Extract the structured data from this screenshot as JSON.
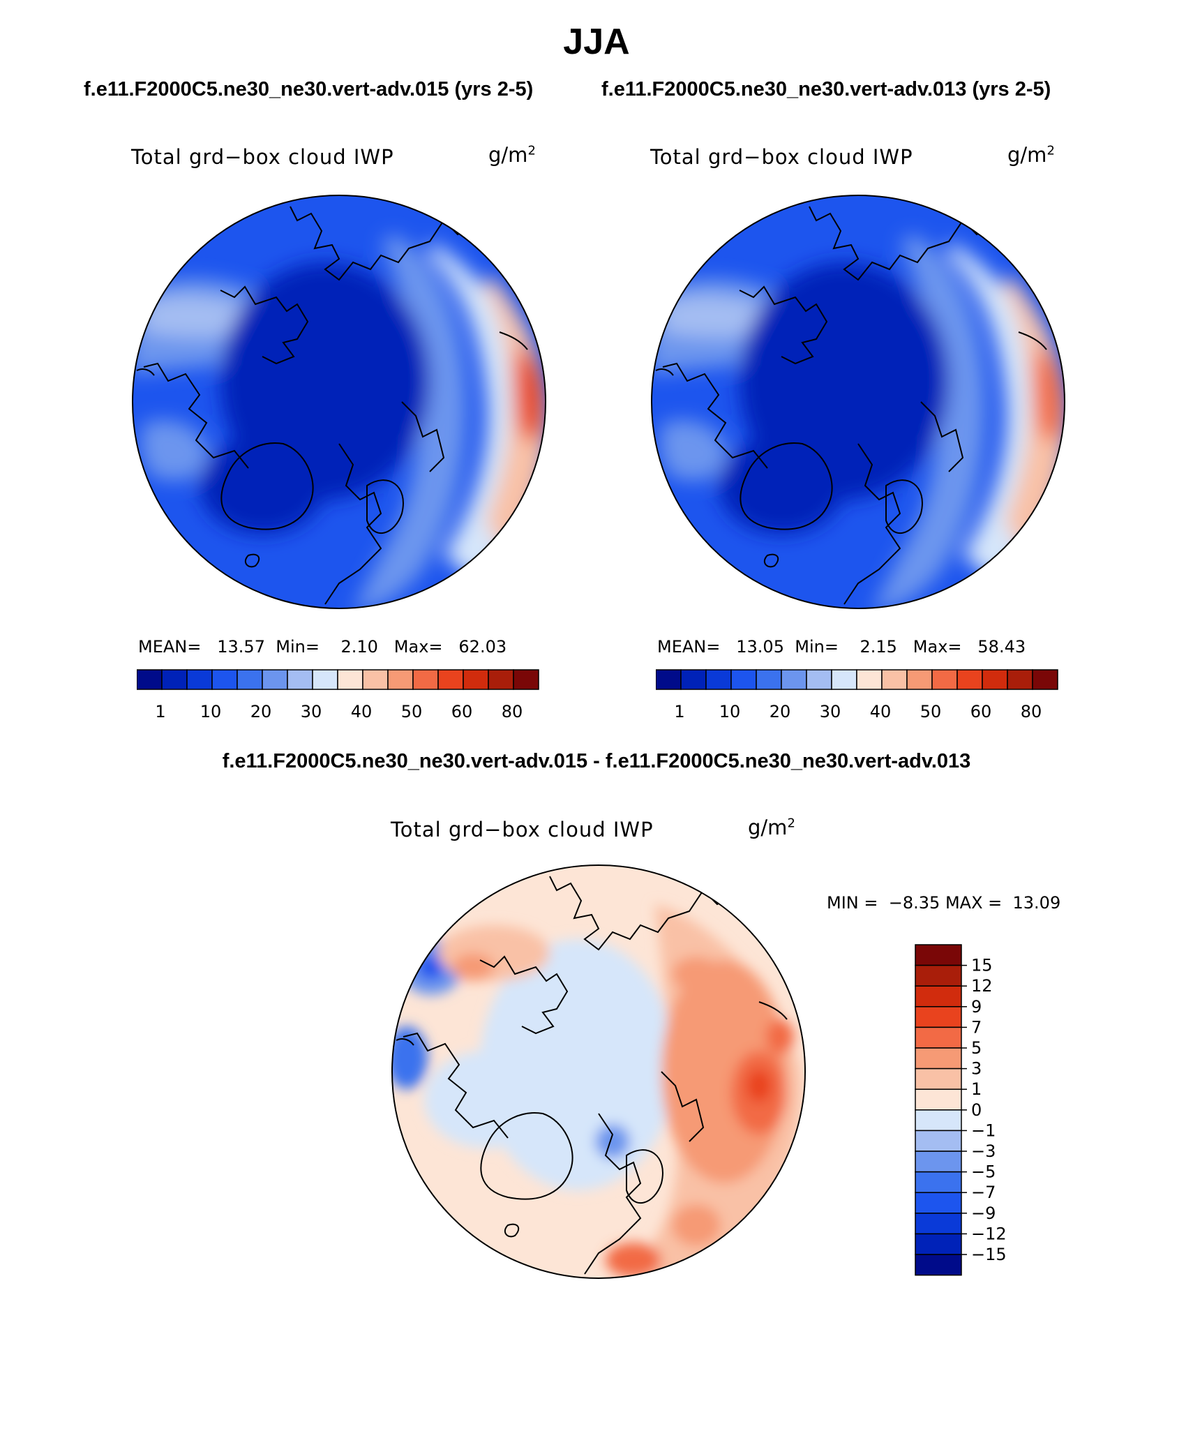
{
  "title": "JJA",
  "case_titles": {
    "left": "f.e11.F2000C5.ne30_ne30.vert-adv.015 (yrs 2-5)",
    "right": "f.e11.F2000C5.ne30_ne30.vert-adv.013 (yrs 2-5)"
  },
  "diff_title": "f.e11.F2000C5.ne30_ne30.vert-adv.015 - f.e11.F2000C5.ne30_ne30.vert-adv.013",
  "colors": {
    "abs_palette": [
      "#000b8a",
      "#0022b8",
      "#0a3ad8",
      "#1d55ee",
      "#3b72ee",
      "#6c95ee",
      "#a4bdf2",
      "#d6e6fa",
      "#fde5d6",
      "#f9c1a6",
      "#f69a75",
      "#f26a45",
      "#e9431e",
      "#d12c0d",
      "#a91e0a",
      "#7a0707"
    ],
    "diff_palette": [
      "#000b8a",
      "#0022b8",
      "#0a3ad8",
      "#1d55ee",
      "#3b72ee",
      "#6c95ee",
      "#a4bdf2",
      "#d6e6fa",
      "#fde5d6",
      "#f9c1a6",
      "#f69a75",
      "#f26a45",
      "#e9431e",
      "#d12c0d",
      "#a91e0a",
      "#7a0707"
    ],
    "coast": "#000000"
  },
  "chart_data": [
    {
      "type": "heatmap",
      "projection": "north-polar-stereographic",
      "case": "f.e11.F2000C5.ne30_ne30.vert-adv.015 (yrs 2-5)",
      "variable": "Total grd−box cloud IWP",
      "units_text": "g/m",
      "units_sup": "2",
      "stats": {
        "mean_label": "MEAN=",
        "mean": "13.57",
        "min_label": "Min=",
        "min": "2.10",
        "max_label": "Max=",
        "max": "62.03"
      },
      "colorbar_labels": [
        "1",
        "10",
        "20",
        "30",
        "40",
        "50",
        "60",
        "80"
      ],
      "regions": [
        {
          "name": "arctic-basin",
          "level": 1
        },
        {
          "name": "greenland",
          "level": 1
        },
        {
          "name": "north-pacific",
          "level": 5
        },
        {
          "name": "north-atlantic",
          "level": 5
        },
        {
          "name": "east-asia-pacific-rim",
          "level": 9
        },
        {
          "name": "western-pacific-warm-pool",
          "level": 12
        }
      ]
    },
    {
      "type": "heatmap",
      "projection": "north-polar-stereographic",
      "case": "f.e11.F2000C5.ne30_ne30.vert-adv.013 (yrs 2-5)",
      "variable": "Total grd−box cloud IWP",
      "units_text": "g/m",
      "units_sup": "2",
      "stats": {
        "mean_label": "MEAN=",
        "mean": "13.05",
        "min_label": "Min=",
        "min": "2.15",
        "max_label": "Max=",
        "max": "58.43"
      },
      "colorbar_labels": [
        "1",
        "10",
        "20",
        "30",
        "40",
        "50",
        "60",
        "80"
      ],
      "regions": [
        {
          "name": "arctic-basin",
          "level": 1
        },
        {
          "name": "greenland",
          "level": 1
        },
        {
          "name": "north-pacific",
          "level": 5
        },
        {
          "name": "north-atlantic",
          "level": 5
        },
        {
          "name": "east-asia-pacific-rim",
          "level": 9
        },
        {
          "name": "western-pacific-warm-pool",
          "level": 11
        }
      ]
    },
    {
      "type": "heatmap",
      "projection": "north-polar-stereographic",
      "case": "f.e11.F2000C5.ne30_ne30.vert-adv.015 - f.e11.F2000C5.ne30_ne30.vert-adv.013",
      "variable": "Total grd−box cloud IWP",
      "units_text": "g/m",
      "units_sup": "2",
      "stats": {
        "min_label": "MIN =",
        "min": "−8.35",
        "max_label": "MAX =",
        "max": "13.09"
      },
      "colorbar_labels": [
        "15",
        "12",
        "9",
        "7",
        "5",
        "3",
        "1",
        "0",
        "−1",
        "−3",
        "−5",
        "−7",
        "−9",
        "−12",
        "−15"
      ],
      "regions": [
        {
          "name": "arctic-basin",
          "level": 7
        },
        {
          "name": "eastern-hemisphere-midlatitudes",
          "level": 9
        },
        {
          "name": "western-pacific",
          "level": 11
        },
        {
          "name": "north-pacific",
          "level": 5
        },
        {
          "name": "north-atlantic",
          "level": 8
        }
      ]
    }
  ]
}
